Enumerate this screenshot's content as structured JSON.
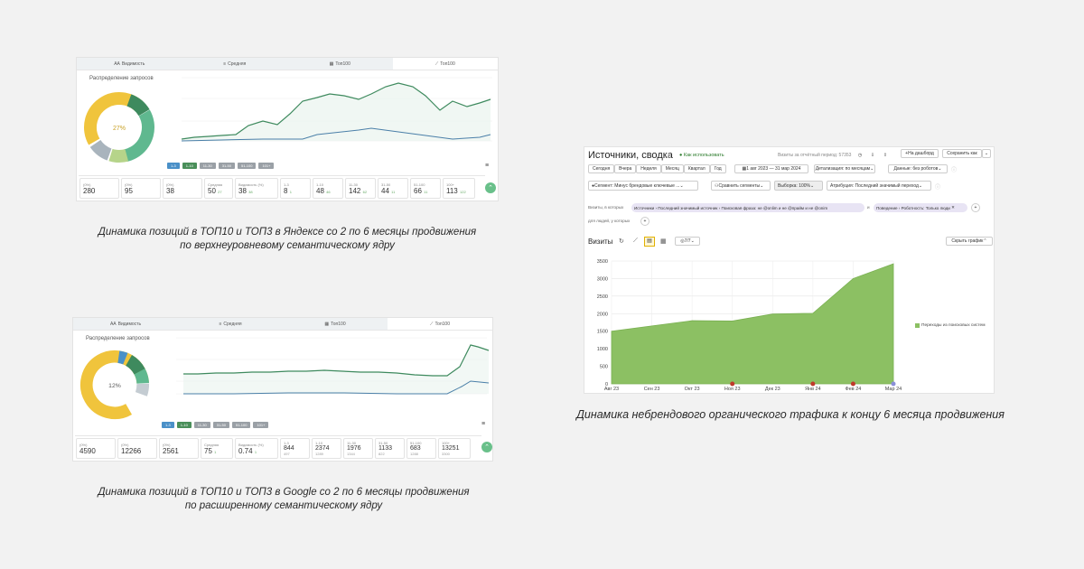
{
  "panel1": {
    "tabs": [
      {
        "icon": "AA",
        "label": "Видимость"
      },
      {
        "icon": "≡",
        "label": "Средняя"
      },
      {
        "icon": "▦",
        "label": "Топ100"
      },
      {
        "icon": "⟋",
        "label": "Топ100"
      }
    ],
    "dist_title": "Распределение запросов",
    "donut_pct": "27%",
    "legend": [
      {
        "label": "1-3",
        "color": "#4a90c8"
      },
      {
        "label": "1-10",
        "color": "#4a8f5a"
      },
      {
        "label": "11-30",
        "color": "#9aa0a6"
      },
      {
        "label": "31-50",
        "color": "#9aa0a6"
      },
      {
        "label": "51-100",
        "color": "#9aa0a6"
      },
      {
        "label": "101+",
        "color": "#9aa0a6"
      }
    ],
    "stats": [
      {
        "top": "(0%)",
        "value": "280",
        "sub": ""
      },
      {
        "top": "(0%)",
        "value": "95",
        "sub": ""
      },
      {
        "top": "(0%)",
        "value": "38",
        "sub": ""
      },
      {
        "top": "Средняя",
        "value": "50",
        "sub": "27"
      },
      {
        "top": "Видимость (%)",
        "value": "38",
        "sub": "38"
      },
      {
        "top": "1-3",
        "value": "8",
        "sub": "1"
      },
      {
        "top": "1-10",
        "value": "48",
        "sub": "46"
      },
      {
        "top": "11-30",
        "value": "142",
        "sub": "62"
      },
      {
        "top": "31-50",
        "value": "44",
        "sub": "11"
      },
      {
        "top": "51-100",
        "value": "66",
        "sub": "11"
      },
      {
        "top": "100+",
        "value": "113",
        "sub": "122"
      }
    ]
  },
  "caption1": {
    "line1": "Динамика позиций в ТОП10 и ТОП3 в Яндексе со 2 по 6 месяцы продвижения",
    "line2": "по верхнеуровневому семантическому ядру"
  },
  "panel2": {
    "tabs": [
      {
        "icon": "AA",
        "label": "Видимость"
      },
      {
        "icon": "≡",
        "label": "Средняя"
      },
      {
        "icon": "▦",
        "label": "Топ100"
      },
      {
        "icon": "⟋",
        "label": "Топ100"
      }
    ],
    "dist_title": "Распределение запросов",
    "donut_pct": "12%",
    "legend": [
      {
        "label": "1-3",
        "color": "#4a90c8"
      },
      {
        "label": "1-10",
        "color": "#4a8f5a"
      },
      {
        "label": "11-30",
        "color": "#9aa0a6"
      },
      {
        "label": "31-50",
        "color": "#9aa0a6"
      },
      {
        "label": "51-100",
        "color": "#9aa0a6"
      },
      {
        "label": "101+",
        "color": "#9aa0a6"
      }
    ],
    "stats": [
      {
        "top": "(0%)",
        "value": "4590",
        "sub": ""
      },
      {
        "top": "(0%)",
        "value": "12266",
        "sub": ""
      },
      {
        "top": "(0%)",
        "value": "2561",
        "sub": ""
      },
      {
        "top": "Средняя",
        "value": "75",
        "sub": "1"
      },
      {
        "top": "Видимость (%)",
        "value": "0.74",
        "sub": "1"
      },
      {
        "top": "1-3",
        "value": "844",
        "sub": "497"
      },
      {
        "top": "1-10",
        "value": "2374",
        "sub": "1289"
      },
      {
        "top": "11-30",
        "value": "1976",
        "sub": "1344"
      },
      {
        "top": "31-50",
        "value": "1133",
        "sub": "822"
      },
      {
        "top": "51-100",
        "value": "683",
        "sub": "1288"
      },
      {
        "top": "100+",
        "value": "13251",
        "sub": "3300"
      }
    ]
  },
  "caption2": {
    "line1": "Динамика позиций в ТОП10 и ТОП3 в Google со 2 по 6 месяцы продвижения",
    "line2": "по расширенному семантическому ядру"
  },
  "metrica": {
    "title": "Источники, сводка",
    "use_label": "Как использовать",
    "visits_label": "Визиты за отчётный период: 57353",
    "add_dash": "На дашборд",
    "save_as": "Сохранить как",
    "periods": [
      "Сегодня",
      "Вчера",
      "Неделя",
      "Месяц",
      "Квартал",
      "Год"
    ],
    "date_range": "1 авг 2023 — 31 мар 2024",
    "detail": "Детализация: по месяцам",
    "data_filter": "Данные: без роботов",
    "segment": "Сегмент: Минус брендовые ключевые ...",
    "compare": "Сравнить сегменты",
    "sample": "Выборка: 100%",
    "attribution": "Атрибуция: Последний значимый переход",
    "filter_prefix": "Визиты, в которых",
    "filter1": "Источники › Последний значимый источник › Поисковая фраза: не @onlim и не @прайм и не @onim",
    "and_label": "и",
    "filter2": "Поведение › Роботность: Только люди",
    "people_prefix": "для людей, у которых",
    "chart_title": "Визиты",
    "series_count": "7/7",
    "hide_chart": "Скрыть график",
    "legend": "Переходы из поисковых систем"
  },
  "chart_data": {
    "type": "area",
    "x": [
      "Авг 23",
      "Сен 23",
      "Окт 23",
      "Ноя 23",
      "Дек 23",
      "Янв 24",
      "Фев 24",
      "Мар 24"
    ],
    "series": [
      {
        "name": "Переходы из поисковых систем",
        "values": [
          1500,
          1650,
          1800,
          1790,
          1990,
          2010,
          3000,
          3420
        ]
      }
    ],
    "yticks": [
      0,
      500,
      1000,
      1500,
      2000,
      2500,
      3000,
      3500
    ],
    "ylim": [
      0,
      3500
    ],
    "color": "#8cc063",
    "grid": true,
    "legend_position": "right"
  },
  "caption3": "Динамика небрендового органического трафика к концу 6 месяца продвижения"
}
